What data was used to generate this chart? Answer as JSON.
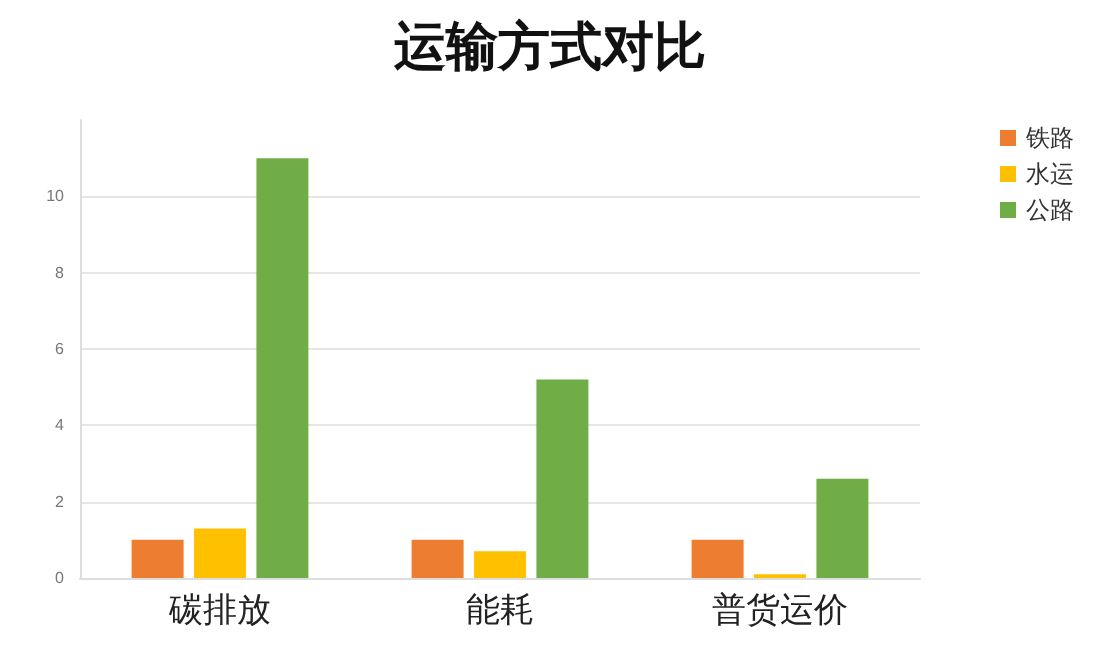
{
  "chart_data": {
    "type": "bar",
    "title": "运输方式对比",
    "categories": [
      "碳排放",
      "能耗",
      "普货运价"
    ],
    "series": [
      {
        "name": "铁路",
        "color": "#ed7d31",
        "values": [
          1,
          1,
          1
        ]
      },
      {
        "name": "水运",
        "color": "#ffc000",
        "values": [
          1.3,
          0.7,
          0.1
        ]
      },
      {
        "name": "公路",
        "color": "#70ad47",
        "values": [
          11,
          5.2,
          2.6
        ]
      }
    ],
    "ylim": [
      0,
      12
    ],
    "yticks": [
      0,
      2,
      4,
      6,
      8,
      10
    ],
    "grid": "y",
    "legend": "top right"
  }
}
